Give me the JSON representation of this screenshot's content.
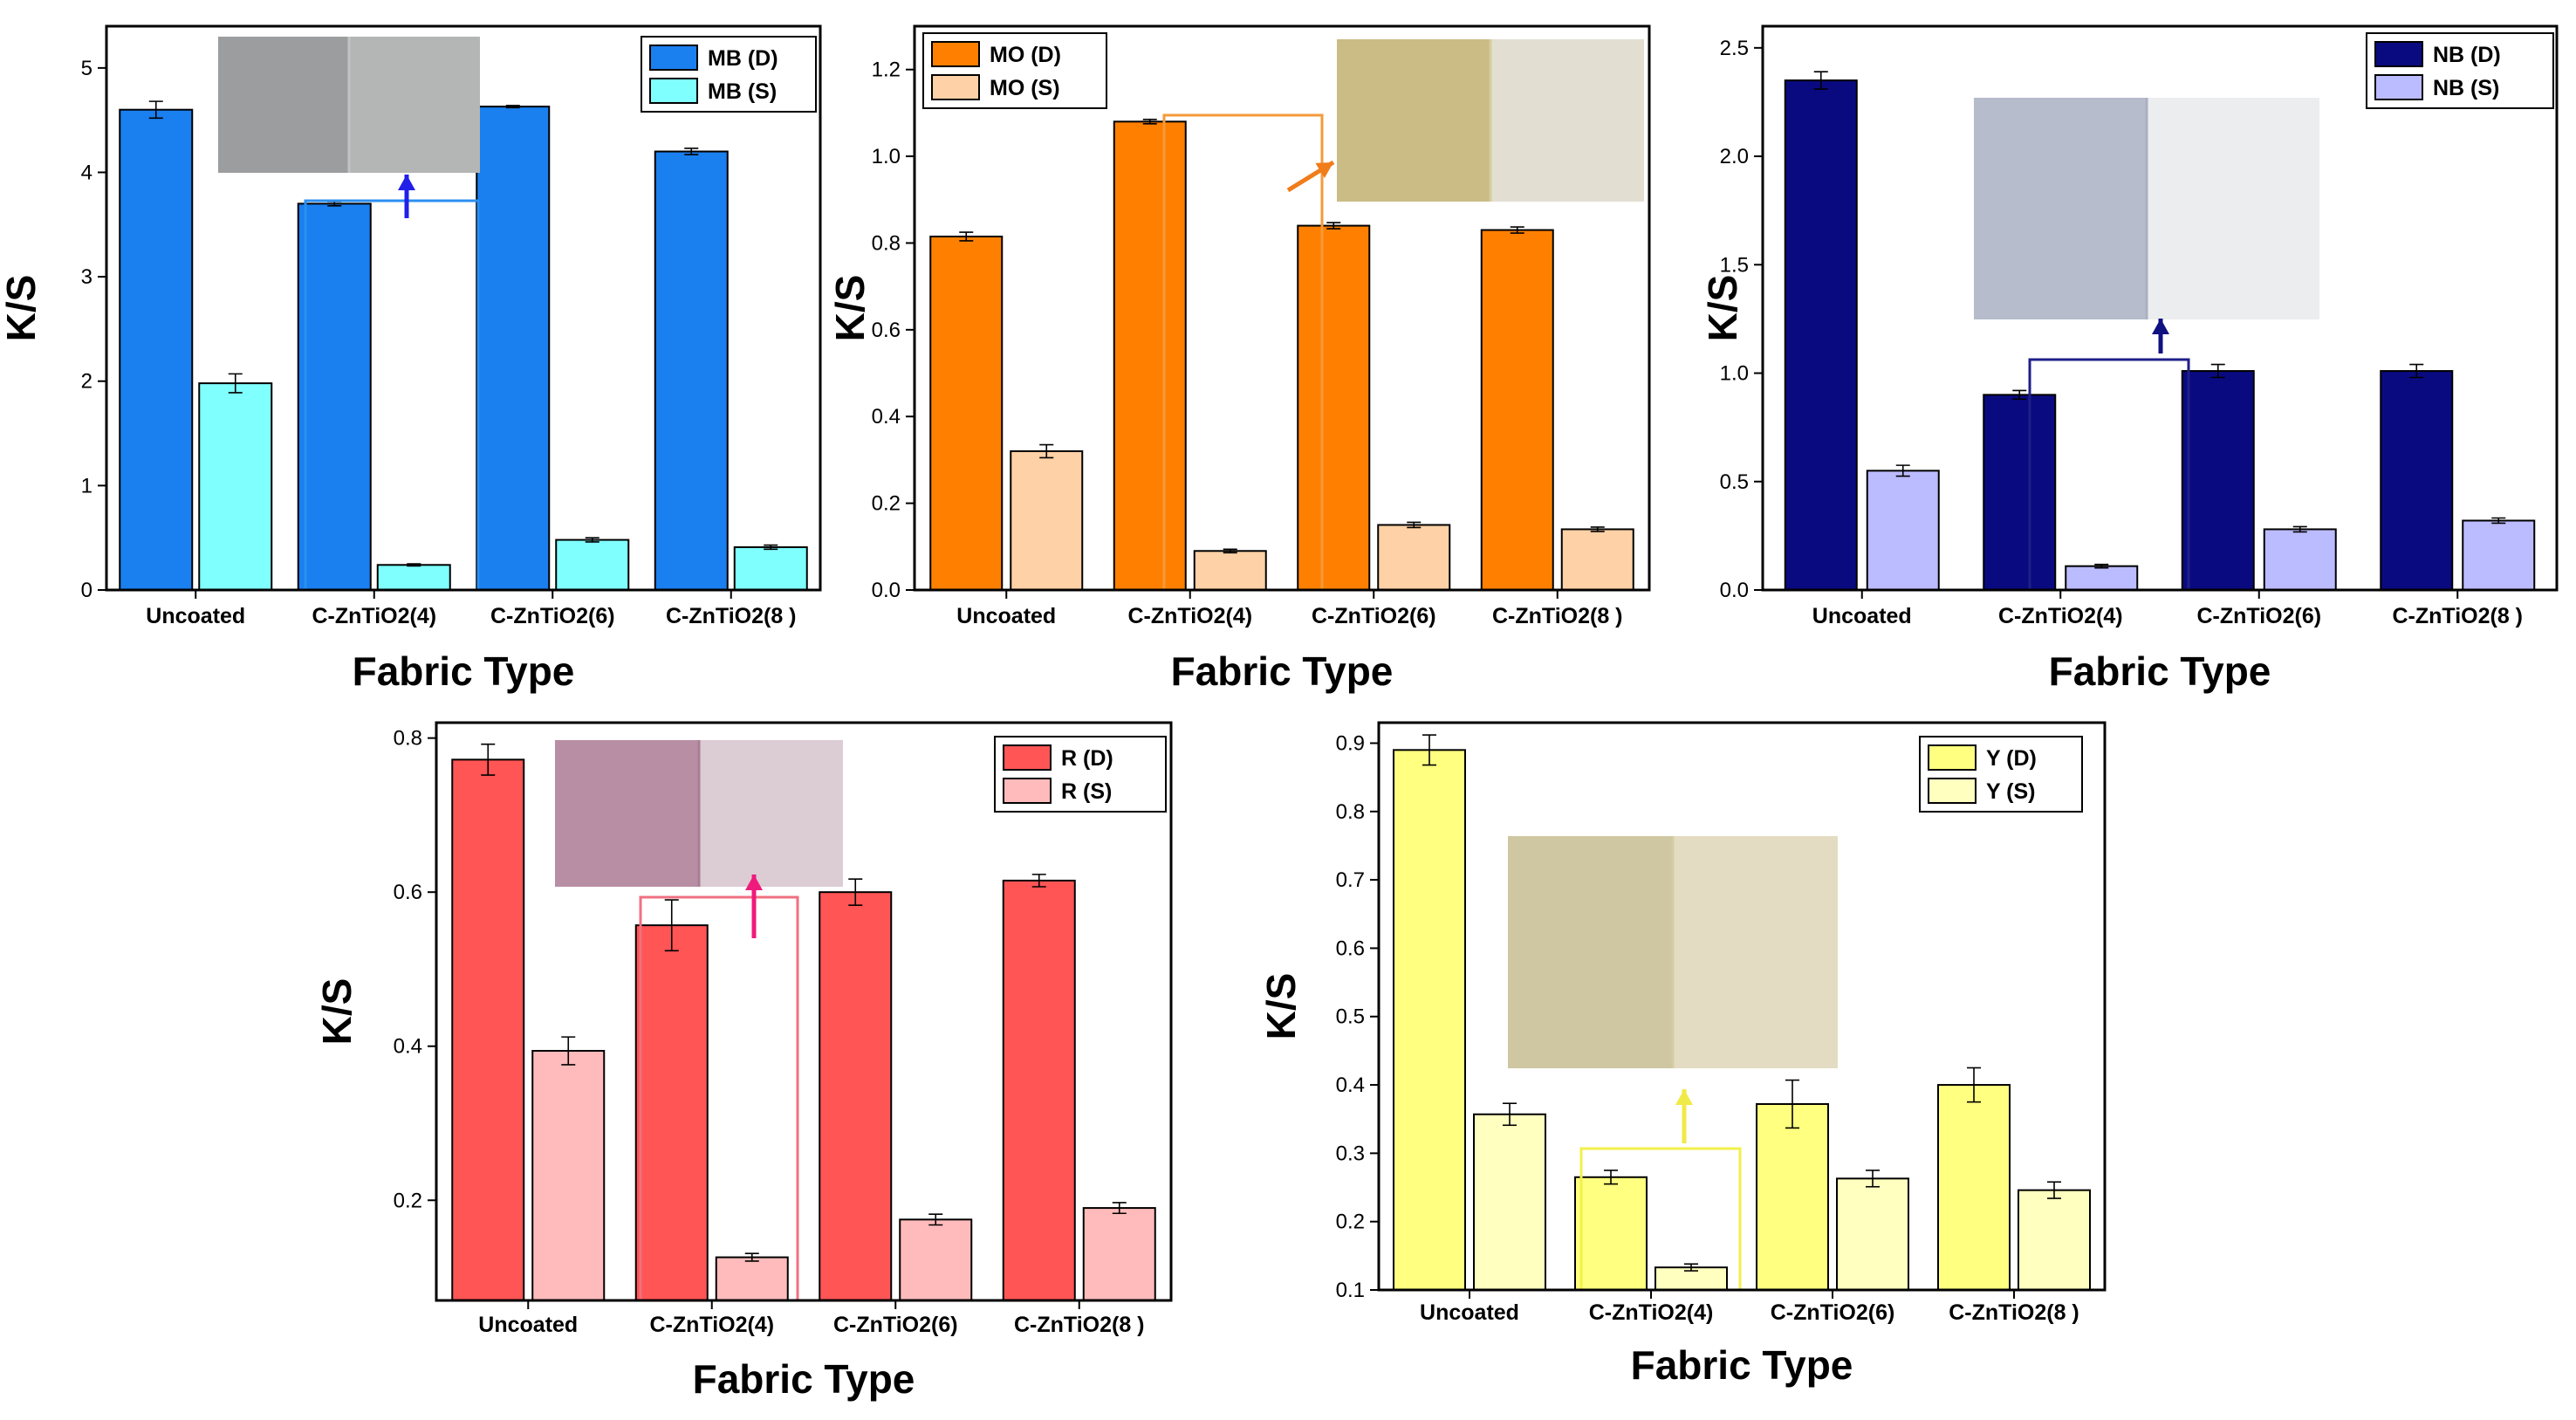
{
  "chart_data": [
    {
      "type": "bar",
      "categories": [
        "Uncoated",
        "C-ZnTiO2(4)",
        "C-ZnTiO2(6)",
        "C-ZnTiO2(8 )"
      ],
      "series": [
        {
          "name": "MB (D)",
          "values": [
            4.6,
            3.7,
            4.63,
            4.2
          ],
          "errors": [
            0.08,
            0.02,
            0.01,
            0.03
          ],
          "color": "#1a7fef"
        },
        {
          "name": "MB (S)",
          "values": [
            1.98,
            0.24,
            0.48,
            0.41
          ],
          "errors": [
            0.09,
            0.01,
            0.02,
            0.02
          ],
          "color": "#80ffff"
        }
      ],
      "xlabel": "Fabric Type",
      "ylabel": "K/S",
      "ylim": [
        0,
        5.4
      ],
      "yticks": [
        0,
        1,
        2,
        3,
        4,
        5
      ],
      "ytick_labels": [
        "0",
        "1",
        "2",
        "3",
        "4",
        "5"
      ],
      "legend": "top-right",
      "highlight_category": "C-ZnTiO2(4)",
      "highlight_color": "#2b8ff0"
    },
    {
      "type": "bar",
      "categories": [
        "Uncoated",
        "C-ZnTiO2(4)",
        "C-ZnTiO2(6)",
        "C-ZnTiO2(8 )"
      ],
      "series": [
        {
          "name": "MO (D)",
          "values": [
            0.815,
            1.08,
            0.84,
            0.83
          ],
          "errors": [
            0.01,
            0.005,
            0.007,
            0.007
          ],
          "color": "#ff8000"
        },
        {
          "name": "MO (S)",
          "values": [
            0.32,
            0.09,
            0.15,
            0.14
          ],
          "errors": [
            0.015,
            0.004,
            0.006,
            0.005
          ],
          "color": "#ffd1a6"
        }
      ],
      "xlabel": "Fabric Type",
      "ylabel": "K/S",
      "ylim": [
        0,
        1.3
      ],
      "yticks": [
        0,
        0.2,
        0.4,
        0.6,
        0.8,
        1.0,
        1.2
      ],
      "ytick_labels": [
        "0.0",
        "0.2",
        "0.4",
        "0.6",
        "0.8",
        "1.0",
        "1.2"
      ],
      "legend": "top-left",
      "highlight_category": "C-ZnTiO2(4)",
      "highlight_color": "#f59a3a"
    },
    {
      "type": "bar",
      "categories": [
        "Uncoated",
        "C-ZnTiO2(4)",
        "C-ZnTiO2(6)",
        "C-ZnTiO2(8 )"
      ],
      "series": [
        {
          "name": "NB (D)",
          "values": [
            2.35,
            0.9,
            1.01,
            1.01
          ],
          "errors": [
            0.04,
            0.02,
            0.03,
            0.03
          ],
          "color": "#0a0a80"
        },
        {
          "name": "NB (S)",
          "values": [
            0.55,
            0.11,
            0.28,
            0.32
          ],
          "errors": [
            0.025,
            0.008,
            0.012,
            0.012
          ],
          "color": "#bbbbff"
        }
      ],
      "xlabel": "Fabric Type",
      "ylabel": "K/S",
      "ylim": [
        0,
        2.6
      ],
      "yticks": [
        0,
        0.5,
        1.0,
        1.5,
        2.0,
        2.5
      ],
      "ytick_labels": [
        "0.0",
        "0.5",
        "1.0",
        "1.5",
        "2.0",
        "2.5"
      ],
      "legend": "top-right",
      "highlight_category": "C-ZnTiO2(4)",
      "highlight_color": "#1f1f8a"
    },
    {
      "type": "bar",
      "categories": [
        "Uncoated",
        "C-ZnTiO2(4)",
        "C-ZnTiO2(6)",
        "C-ZnTiO2(8 )"
      ],
      "series": [
        {
          "name": "R (D)",
          "values": [
            0.772,
            0.557,
            0.6,
            0.615
          ],
          "errors": [
            0.02,
            0.033,
            0.017,
            0.008
          ],
          "color": "#ff5555"
        },
        {
          "name": "R (S)",
          "values": [
            0.394,
            0.126,
            0.175,
            0.19
          ],
          "errors": [
            0.018,
            0.005,
            0.007,
            0.007
          ],
          "color": "#ffbbbb"
        }
      ],
      "xlabel": "Fabric Type",
      "ylabel": "K/S",
      "ylim": [
        0.07,
        0.82
      ],
      "yticks": [
        0.2,
        0.4,
        0.6,
        0.8
      ],
      "ytick_labels": [
        "0.2",
        "0.4",
        "0.6",
        "0.8"
      ],
      "legend": "top-right",
      "highlight_category": "C-ZnTiO2(4)",
      "highlight_color": "#f07080"
    },
    {
      "type": "bar",
      "categories": [
        "Uncoated",
        "C-ZnTiO2(4)",
        "C-ZnTiO2(6)",
        "C-ZnTiO2(8 )"
      ],
      "series": [
        {
          "name": "Y (D)",
          "values": [
            0.89,
            0.265,
            0.372,
            0.4
          ],
          "errors": [
            0.022,
            0.01,
            0.035,
            0.025
          ],
          "color": "#ffff80"
        },
        {
          "name": "Y (S)",
          "values": [
            0.357,
            0.133,
            0.263,
            0.246
          ],
          "errors": [
            0.016,
            0.005,
            0.012,
            0.012
          ],
          "color": "#ffffc0"
        }
      ],
      "xlabel": "Fabric Type",
      "ylabel": "K/S",
      "ylim": [
        0.1,
        0.93
      ],
      "yticks": [
        0.1,
        0.2,
        0.3,
        0.4,
        0.5,
        0.6,
        0.7,
        0.8,
        0.9
      ],
      "ytick_labels": [
        "0.1",
        "0.2",
        "0.3",
        "0.4",
        "0.5",
        "0.6",
        "0.7",
        "0.8",
        "0.9"
      ],
      "legend": "top-right",
      "highlight_category": "C-ZnTiO2(4)",
      "highlight_color": "#f2f04a"
    }
  ]
}
